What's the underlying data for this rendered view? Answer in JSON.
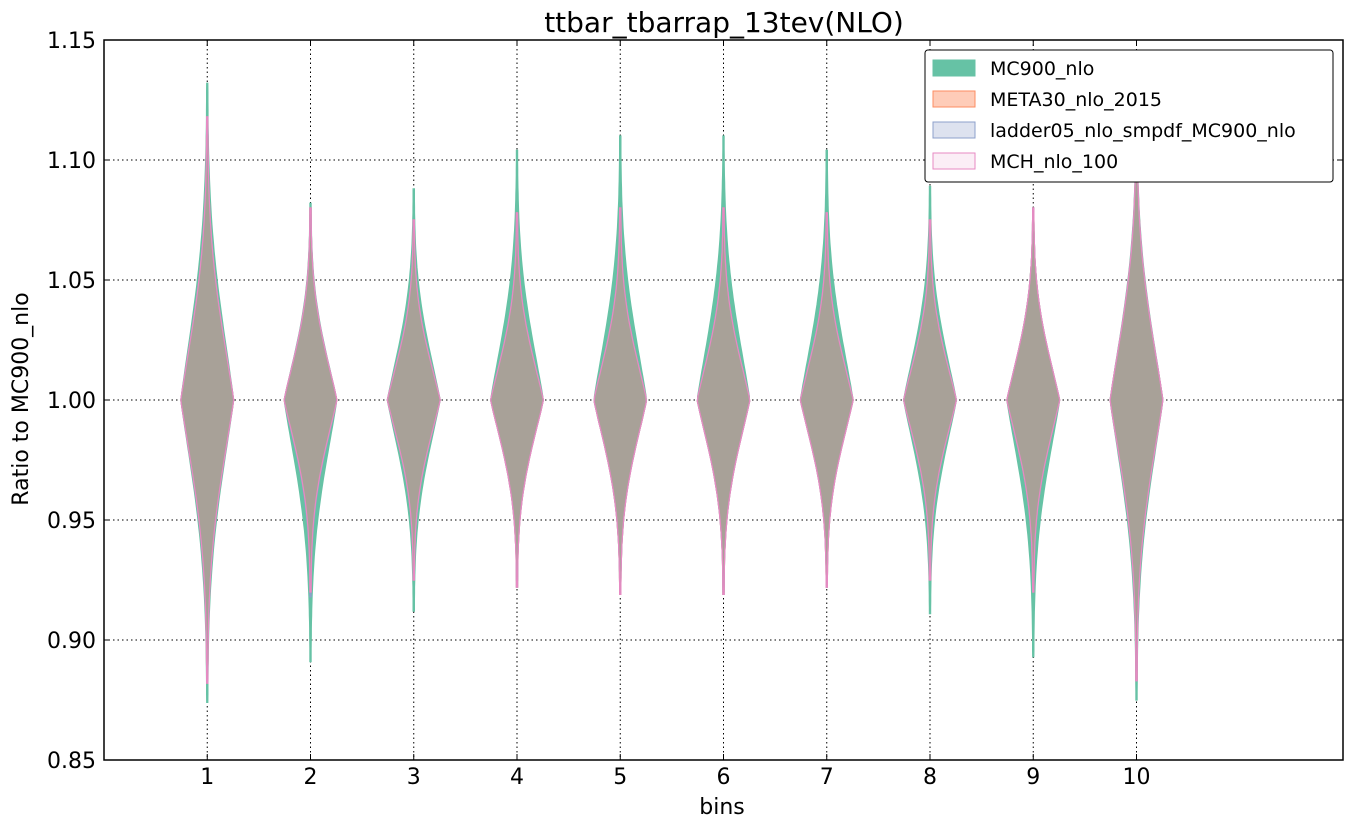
{
  "chart_data": {
    "type": "violin",
    "title": "ttbar_tbarrap_13tev(NLO)",
    "xlabel": "bins",
    "ylabel": "Ratio to MC900_nlo",
    "ylim": [
      0.85,
      1.15
    ],
    "xlim": [
      0,
      12
    ],
    "yticks": [
      "0.85",
      "0.90",
      "0.95",
      "1.00",
      "1.05",
      "1.10",
      "1.15"
    ],
    "categories": [
      "1",
      "2",
      "3",
      "4",
      "5",
      "6",
      "7",
      "8",
      "9",
      "10"
    ],
    "grid": true,
    "legend_position": "top-right",
    "series": [
      {
        "name": "MC900_nlo",
        "color": "#66c2a5",
        "fill_opacity": 1,
        "min": [
          0.874,
          0.891,
          0.912,
          0.925,
          0.92,
          0.92,
          0.924,
          0.911,
          0.893,
          0.875
        ],
        "max": [
          1.132,
          1.082,
          1.088,
          1.104,
          1.11,
          1.11,
          1.104,
          1.089,
          1.08,
          1.12
        ],
        "bulge_width": [
          0.25,
          0.25,
          0.25,
          0.25,
          0.25,
          0.25,
          0.25,
          0.25,
          0.25,
          0.25
        ]
      },
      {
        "name": "META30_nlo_2015",
        "color": "#fc8d62",
        "fill_opacity": 0.45,
        "min": [
          0.882,
          0.92,
          0.925,
          0.922,
          0.919,
          0.919,
          0.922,
          0.925,
          0.92,
          0.883
        ],
        "max": [
          1.118,
          1.08,
          1.075,
          1.078,
          1.08,
          1.08,
          1.078,
          1.075,
          1.08,
          1.117
        ],
        "bulge_width": [
          0.25,
          0.25,
          0.25,
          0.25,
          0.25,
          0.25,
          0.25,
          0.25,
          0.25,
          0.25
        ]
      },
      {
        "name": "ladder05_nlo_smpdf_MC900_nlo",
        "color": "#8da0cb",
        "fill_opacity": 0.3,
        "min": [
          0.882,
          0.918,
          0.925,
          0.922,
          0.919,
          0.919,
          0.922,
          0.925,
          0.92,
          0.883
        ],
        "max": [
          1.118,
          1.08,
          1.075,
          1.078,
          1.08,
          1.08,
          1.078,
          1.075,
          1.08,
          1.117
        ],
        "bulge_width": [
          0.25,
          0.25,
          0.25,
          0.25,
          0.25,
          0.25,
          0.25,
          0.25,
          0.25,
          0.25
        ]
      },
      {
        "name": "MCH_nlo_100",
        "color": "#e78ac3",
        "fill_opacity": 0.15,
        "min": [
          0.882,
          0.92,
          0.925,
          0.922,
          0.919,
          0.919,
          0.922,
          0.925,
          0.92,
          0.883
        ],
        "max": [
          1.118,
          1.08,
          1.075,
          1.078,
          1.08,
          1.08,
          1.078,
          1.075,
          1.08,
          1.117
        ],
        "bulge_width": [
          0.25,
          0.25,
          0.25,
          0.25,
          0.25,
          0.25,
          0.25,
          0.25,
          0.25,
          0.25
        ]
      }
    ],
    "overlap_fill_color": "#ae9f98"
  }
}
